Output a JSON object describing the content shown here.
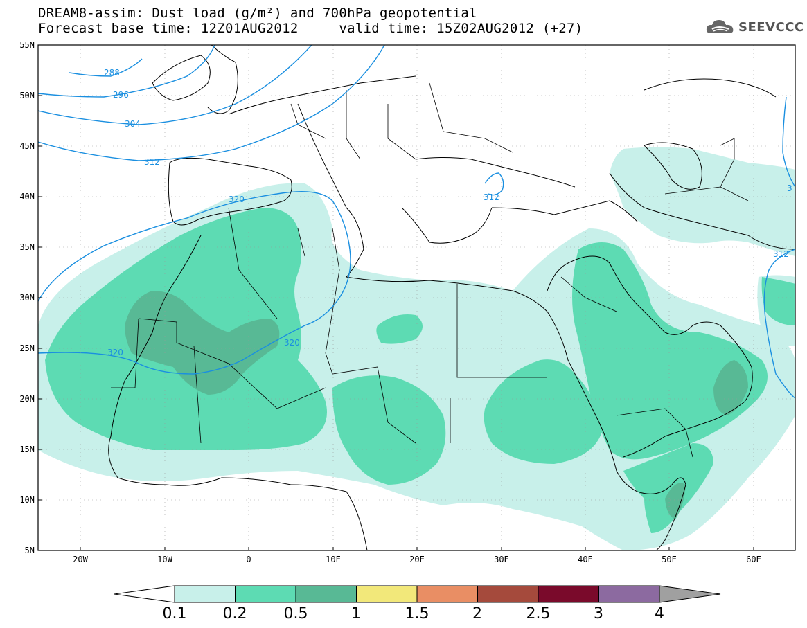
{
  "header": {
    "title_line1": "DREAM8-assim: Dust load (g/m²) and 700hPa geopotential",
    "title_line2": "Forecast base time: 12Z01AUG2012     valid time: 15Z02AUG2012 (+27)"
  },
  "logo": {
    "text": "SEEVCCC",
    "icon": "cloud-logo-icon"
  },
  "map": {
    "lat_labels": [
      "55N",
      "50N",
      "45N",
      "40N",
      "35N",
      "30N",
      "25N",
      "20N",
      "15N",
      "10N",
      "5N"
    ],
    "lon_labels": [
      "20W",
      "10W",
      "0",
      "10E",
      "20E",
      "30E",
      "40E",
      "50E",
      "60E"
    ],
    "contour_color": "#1a8fe0",
    "contour_labels": [
      "288",
      "296",
      "304",
      "312",
      "320",
      "320",
      "320",
      "312",
      "312",
      "3"
    ]
  },
  "legend": {
    "colors": [
      "#c8f0ea",
      "#5ddbb3",
      "#58b995",
      "#f2e87a",
      "#e98e64",
      "#a54a3c",
      "#7a0a2b",
      "#8c6aa0"
    ],
    "tick_labels": [
      "0.1",
      "0.2",
      "0.5",
      "1",
      "1.5",
      "2",
      "2.5",
      "3",
      "4"
    ]
  }
}
